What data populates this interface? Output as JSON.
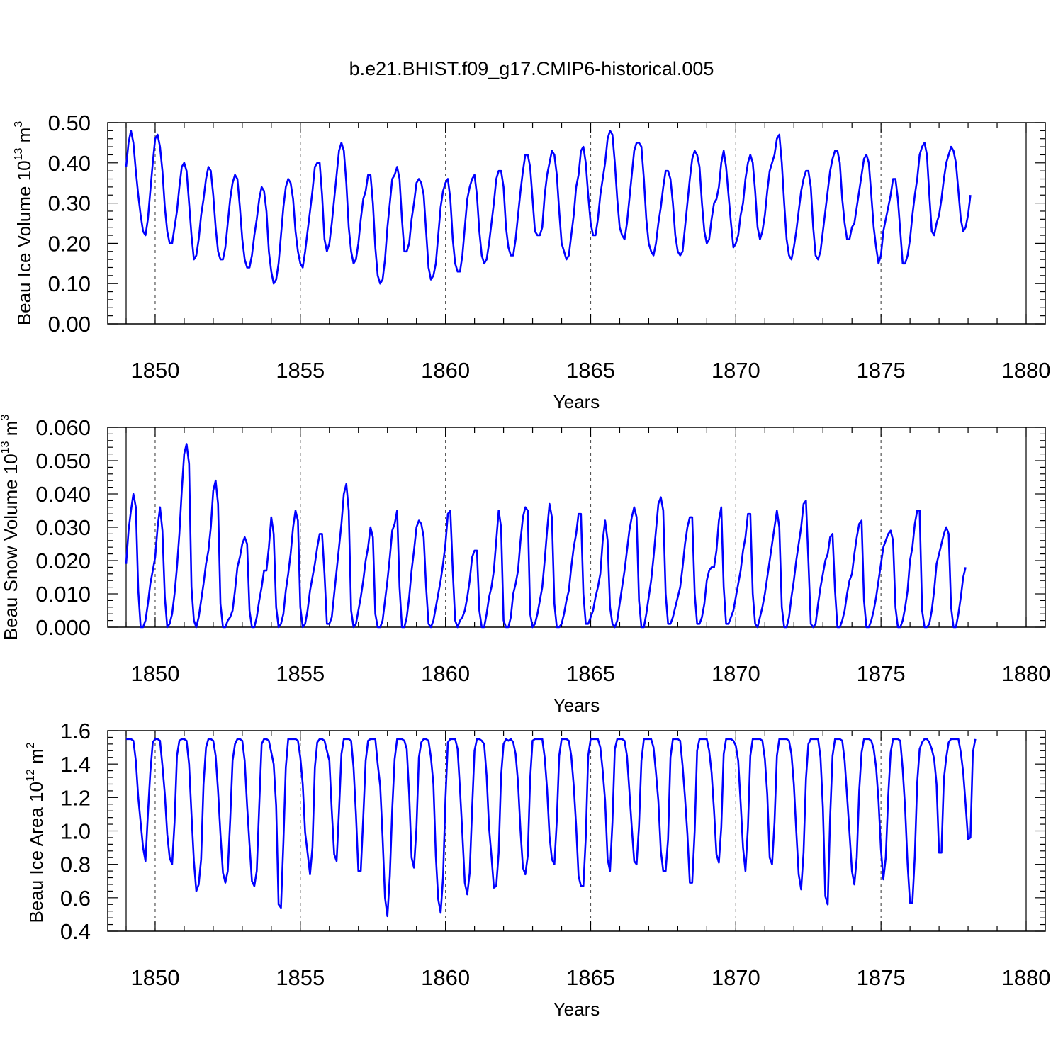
{
  "title": "b.e21.BHIST.f09_g17.CMIP6-historical.005",
  "chart_data": [
    {
      "type": "line",
      "ylabel": "Beau Ice Volume 10",
      "ylabel_exp": "13",
      "ylabel_unit": " m",
      "ylabel_unit_exp": "3",
      "xlabel": "Years",
      "xlim": [
        1849,
        1880
      ],
      "ylim": [
        0.0,
        0.5
      ],
      "x_ticks": [
        1850,
        1855,
        1860,
        1865,
        1870,
        1875,
        1880
      ],
      "y_ticks": [
        "0.00",
        "0.10",
        "0.20",
        "0.30",
        "0.40",
        "0.50"
      ],
      "grid": "dashed vertical at major x ticks",
      "color": "#0000ff",
      "x_start": 1849.0,
      "x_step": 0.08333,
      "values": [
        0.39,
        0.45,
        0.48,
        0.45,
        0.38,
        0.32,
        0.27,
        0.23,
        0.22,
        0.26,
        0.33,
        0.4,
        0.46,
        0.47,
        0.44,
        0.38,
        0.29,
        0.23,
        0.2,
        0.2,
        0.24,
        0.28,
        0.34,
        0.39,
        0.4,
        0.38,
        0.3,
        0.22,
        0.16,
        0.17,
        0.21,
        0.27,
        0.31,
        0.36,
        0.39,
        0.38,
        0.32,
        0.24,
        0.18,
        0.16,
        0.16,
        0.19,
        0.25,
        0.31,
        0.35,
        0.37,
        0.36,
        0.29,
        0.21,
        0.16,
        0.14,
        0.14,
        0.17,
        0.22,
        0.26,
        0.31,
        0.34,
        0.33,
        0.28,
        0.18,
        0.13,
        0.1,
        0.11,
        0.15,
        0.22,
        0.29,
        0.34,
        0.36,
        0.35,
        0.31,
        0.23,
        0.18,
        0.15,
        0.14,
        0.18,
        0.23,
        0.28,
        0.33,
        0.39,
        0.4,
        0.4,
        0.32,
        0.21,
        0.18,
        0.2,
        0.25,
        0.31,
        0.37,
        0.43,
        0.45,
        0.43,
        0.35,
        0.24,
        0.18,
        0.15,
        0.16,
        0.2,
        0.26,
        0.31,
        0.33,
        0.37,
        0.37,
        0.3,
        0.19,
        0.12,
        0.1,
        0.11,
        0.16,
        0.24,
        0.3,
        0.36,
        0.37,
        0.39,
        0.36,
        0.26,
        0.18,
        0.18,
        0.2,
        0.26,
        0.3,
        0.35,
        0.36,
        0.35,
        0.32,
        0.23,
        0.14,
        0.11,
        0.12,
        0.15,
        0.22,
        0.29,
        0.33,
        0.35,
        0.36,
        0.31,
        0.21,
        0.15,
        0.13,
        0.13,
        0.17,
        0.24,
        0.31,
        0.34,
        0.36,
        0.37,
        0.32,
        0.23,
        0.17,
        0.15,
        0.16,
        0.2,
        0.25,
        0.3,
        0.36,
        0.38,
        0.38,
        0.34,
        0.24,
        0.19,
        0.17,
        0.17,
        0.21,
        0.27,
        0.33,
        0.38,
        0.42,
        0.42,
        0.39,
        0.31,
        0.23,
        0.22,
        0.22,
        0.24,
        0.32,
        0.37,
        0.4,
        0.43,
        0.42,
        0.37,
        0.28,
        0.2,
        0.18,
        0.16,
        0.17,
        0.22,
        0.27,
        0.34,
        0.37,
        0.43,
        0.44,
        0.4,
        0.32,
        0.25,
        0.22,
        0.22,
        0.26,
        0.32,
        0.36,
        0.4,
        0.46,
        0.48,
        0.47,
        0.4,
        0.31,
        0.24,
        0.22,
        0.21,
        0.25,
        0.31,
        0.37,
        0.43,
        0.45,
        0.45,
        0.44,
        0.36,
        0.26,
        0.2,
        0.18,
        0.17,
        0.2,
        0.25,
        0.29,
        0.34,
        0.38,
        0.38,
        0.36,
        0.3,
        0.22,
        0.18,
        0.17,
        0.18,
        0.24,
        0.3,
        0.36,
        0.41,
        0.43,
        0.42,
        0.39,
        0.3,
        0.23,
        0.2,
        0.21,
        0.26,
        0.3,
        0.31,
        0.34,
        0.4,
        0.43,
        0.39,
        0.32,
        0.25,
        0.19,
        0.2,
        0.22,
        0.27,
        0.3,
        0.36,
        0.4,
        0.42,
        0.4,
        0.33,
        0.24,
        0.21,
        0.23,
        0.27,
        0.33,
        0.38,
        0.4,
        0.42,
        0.46,
        0.47,
        0.4,
        0.3,
        0.21,
        0.17,
        0.16,
        0.19,
        0.23,
        0.28,
        0.33,
        0.36,
        0.38,
        0.38,
        0.34,
        0.24,
        0.17,
        0.16,
        0.18,
        0.23,
        0.28,
        0.33,
        0.38,
        0.41,
        0.43,
        0.43,
        0.4,
        0.31,
        0.25,
        0.21,
        0.21,
        0.24,
        0.25,
        0.29,
        0.33,
        0.37,
        0.41,
        0.42,
        0.4,
        0.32,
        0.24,
        0.19,
        0.15,
        0.17,
        0.23,
        0.26,
        0.29,
        0.32,
        0.36,
        0.36,
        0.31,
        0.23,
        0.15,
        0.15,
        0.17,
        0.21,
        0.27,
        0.32,
        0.36,
        0.42,
        0.44,
        0.45,
        0.42,
        0.32,
        0.23,
        0.22,
        0.25,
        0.27,
        0.31,
        0.36,
        0.4,
        0.42,
        0.44,
        0.43,
        0.4,
        0.33,
        0.26,
        0.23,
        0.24,
        0.27,
        0.32
      ]
    },
    {
      "type": "line",
      "ylabel": "Beau Snow Volume 10",
      "ylabel_exp": "13",
      "ylabel_unit": " m",
      "ylabel_unit_exp": "3",
      "xlabel": "Years",
      "xlim": [
        1849,
        1880
      ],
      "ylim": [
        0.0,
        0.06
      ],
      "x_ticks": [
        1850,
        1855,
        1860,
        1865,
        1870,
        1875,
        1880
      ],
      "y_ticks": [
        "0.000",
        "0.010",
        "0.020",
        "0.030",
        "0.040",
        "0.050",
        "0.060"
      ],
      "grid": "dashed vertical at major x ticks",
      "color": "#0000ff",
      "x_start": 1849.0,
      "x_step": 0.08333,
      "values": [
        0.019,
        0.029,
        0.035,
        0.04,
        0.036,
        0.011,
        0.0,
        0.0,
        0.002,
        0.007,
        0.013,
        0.017,
        0.021,
        0.03,
        0.036,
        0.029,
        0.009,
        0.0,
        0.001,
        0.004,
        0.01,
        0.018,
        0.028,
        0.041,
        0.052,
        0.055,
        0.049,
        0.012,
        0.002,
        0.0,
        0.003,
        0.008,
        0.013,
        0.019,
        0.023,
        0.03,
        0.041,
        0.044,
        0.037,
        0.007,
        0.0,
        0.0,
        0.002,
        0.003,
        0.005,
        0.011,
        0.018,
        0.021,
        0.025,
        0.027,
        0.025,
        0.005,
        0.0,
        0.0,
        0.003,
        0.008,
        0.012,
        0.017,
        0.017,
        0.024,
        0.033,
        0.028,
        0.006,
        0.0,
        0.001,
        0.004,
        0.011,
        0.016,
        0.022,
        0.03,
        0.035,
        0.032,
        0.006,
        0.0,
        0.001,
        0.005,
        0.011,
        0.015,
        0.019,
        0.024,
        0.028,
        0.028,
        0.016,
        0.001,
        0.001,
        0.003,
        0.01,
        0.017,
        0.024,
        0.031,
        0.04,
        0.043,
        0.035,
        0.005,
        0.0,
        0.001,
        0.005,
        0.009,
        0.014,
        0.02,
        0.024,
        0.03,
        0.027,
        0.004,
        0.0,
        0.0,
        0.002,
        0.008,
        0.014,
        0.021,
        0.029,
        0.031,
        0.035,
        0.012,
        0.0,
        0.0,
        0.003,
        0.009,
        0.017,
        0.023,
        0.03,
        0.032,
        0.031,
        0.027,
        0.012,
        0.001,
        0.0,
        0.002,
        0.006,
        0.01,
        0.014,
        0.019,
        0.025,
        0.034,
        0.035,
        0.017,
        0.002,
        0.0,
        0.002,
        0.003,
        0.005,
        0.009,
        0.014,
        0.021,
        0.023,
        0.023,
        0.005,
        0.0,
        0.0,
        0.004,
        0.009,
        0.012,
        0.017,
        0.026,
        0.035,
        0.03,
        0.002,
        0.0,
        0.0,
        0.003,
        0.01,
        0.013,
        0.017,
        0.026,
        0.033,
        0.036,
        0.035,
        0.004,
        0.0,
        0.001,
        0.004,
        0.008,
        0.012,
        0.02,
        0.029,
        0.037,
        0.033,
        0.007,
        0.0,
        0.0,
        0.001,
        0.004,
        0.008,
        0.011,
        0.018,
        0.024,
        0.028,
        0.034,
        0.034,
        0.01,
        0.001,
        0.001,
        0.003,
        0.005,
        0.009,
        0.012,
        0.016,
        0.026,
        0.032,
        0.026,
        0.006,
        0.001,
        0.0,
        0.002,
        0.007,
        0.012,
        0.017,
        0.023,
        0.029,
        0.033,
        0.036,
        0.033,
        0.008,
        0.0,
        0.0,
        0.004,
        0.009,
        0.014,
        0.021,
        0.029,
        0.037,
        0.039,
        0.035,
        0.01,
        0.001,
        0.001,
        0.003,
        0.006,
        0.009,
        0.012,
        0.018,
        0.025,
        0.03,
        0.033,
        0.033,
        0.01,
        0.001,
        0.001,
        0.003,
        0.007,
        0.014,
        0.017,
        0.018,
        0.018,
        0.023,
        0.032,
        0.036,
        0.012,
        0.001,
        0.001,
        0.003,
        0.005,
        0.009,
        0.013,
        0.017,
        0.023,
        0.027,
        0.034,
        0.034,
        0.01,
        0.001,
        0.0,
        0.003,
        0.006,
        0.01,
        0.015,
        0.02,
        0.025,
        0.03,
        0.035,
        0.03,
        0.006,
        0.0,
        0.0,
        0.003,
        0.009,
        0.014,
        0.02,
        0.025,
        0.03,
        0.037,
        0.038,
        0.02,
        0.001,
        0.0,
        0.001,
        0.007,
        0.012,
        0.016,
        0.02,
        0.022,
        0.027,
        0.028,
        0.011,
        0.0,
        0.0,
        0.002,
        0.005,
        0.01,
        0.014,
        0.016,
        0.022,
        0.027,
        0.031,
        0.032,
        0.008,
        0.0,
        0.0,
        0.002,
        0.005,
        0.009,
        0.014,
        0.019,
        0.024,
        0.026,
        0.028,
        0.029,
        0.026,
        0.006,
        0.0,
        0.0,
        0.002,
        0.006,
        0.011,
        0.02,
        0.024,
        0.031,
        0.035,
        0.035,
        0.005,
        0.0,
        0.0,
        0.001,
        0.005,
        0.011,
        0.019,
        0.022,
        0.025,
        0.028,
        0.03,
        0.028,
        0.006,
        0.0,
        0.0,
        0.004,
        0.009,
        0.015,
        0.018
      ]
    },
    {
      "type": "line",
      "ylabel": "Beau Ice Area 10",
      "ylabel_exp": "12",
      "ylabel_unit": " m",
      "ylabel_unit_exp": "2",
      "xlabel": "Years",
      "xlim": [
        1849,
        1880
      ],
      "ylim": [
        0.4,
        1.6
      ],
      "x_ticks": [
        1850,
        1855,
        1860,
        1865,
        1870,
        1875,
        1880
      ],
      "y_ticks": [
        "0.4",
        "0.6",
        "0.8",
        "1.0",
        "1.2",
        "1.4",
        "1.6"
      ],
      "grid": "dashed vertical at major x ticks",
      "color": "#0000ff",
      "x_start": 1849.0,
      "x_step": 0.08333,
      "values": [
        1.55,
        1.55,
        1.55,
        1.54,
        1.42,
        1.2,
        1.05,
        0.9,
        0.82,
        1.1,
        1.35,
        1.53,
        1.55,
        1.55,
        1.54,
        1.39,
        1.22,
        0.98,
        0.84,
        0.8,
        1.05,
        1.45,
        1.54,
        1.55,
        1.55,
        1.54,
        1.4,
        1.1,
        0.82,
        0.64,
        0.68,
        0.83,
        1.28,
        1.5,
        1.55,
        1.55,
        1.54,
        1.45,
        1.24,
        0.98,
        0.75,
        0.69,
        0.76,
        1.06,
        1.42,
        1.52,
        1.55,
        1.55,
        1.54,
        1.42,
        1.15,
        0.92,
        0.7,
        0.67,
        0.76,
        1.15,
        1.52,
        1.55,
        1.55,
        1.54,
        1.47,
        1.4,
        1.15,
        0.56,
        0.54,
        0.93,
        1.38,
        1.55,
        1.55,
        1.55,
        1.55,
        1.54,
        1.44,
        1.28,
        0.99,
        0.87,
        0.74,
        0.9,
        1.38,
        1.53,
        1.55,
        1.55,
        1.54,
        1.48,
        1.42,
        1.12,
        0.86,
        0.82,
        1.12,
        1.46,
        1.55,
        1.55,
        1.55,
        1.54,
        1.38,
        1.1,
        0.76,
        0.76,
        1.08,
        1.42,
        1.54,
        1.55,
        1.55,
        1.55,
        1.4,
        1.27,
        0.96,
        0.6,
        0.49,
        0.73,
        1.13,
        1.43,
        1.55,
        1.55,
        1.55,
        1.54,
        1.49,
        1.22,
        0.84,
        0.78,
        1.02,
        1.44,
        1.53,
        1.55,
        1.55,
        1.54,
        1.44,
        1.28,
        0.85,
        0.59,
        0.51,
        0.72,
        1.19,
        1.53,
        1.55,
        1.55,
        1.55,
        1.49,
        1.25,
        0.98,
        0.69,
        0.62,
        0.75,
        1.13,
        1.48,
        1.55,
        1.55,
        1.54,
        1.52,
        1.33,
        1.02,
        0.85,
        0.66,
        0.67,
        0.87,
        1.33,
        1.52,
        1.55,
        1.54,
        1.55,
        1.53,
        1.46,
        1.29,
        1.0,
        0.78,
        0.74,
        0.85,
        1.31,
        1.54,
        1.55,
        1.55,
        1.55,
        1.55,
        1.44,
        1.25,
        0.97,
        0.83,
        0.8,
        1.06,
        1.45,
        1.55,
        1.55,
        1.55,
        1.54,
        1.45,
        1.27,
        1.03,
        0.73,
        0.67,
        0.67,
        0.96,
        1.45,
        1.55,
        1.55,
        1.55,
        1.55,
        1.5,
        1.36,
        1.18,
        0.83,
        0.76,
        1.05,
        1.49,
        1.55,
        1.55,
        1.55,
        1.54,
        1.45,
        1.24,
        1.02,
        0.82,
        0.8,
        1.03,
        1.42,
        1.55,
        1.55,
        1.55,
        1.55,
        1.5,
        1.35,
        1.18,
        0.88,
        0.76,
        0.76,
        0.95,
        1.44,
        1.55,
        1.55,
        1.55,
        1.54,
        1.39,
        1.2,
        0.98,
        0.69,
        0.69,
        1.0,
        1.48,
        1.55,
        1.55,
        1.55,
        1.55,
        1.48,
        1.35,
        1.12,
        0.86,
        0.81,
        1.02,
        1.46,
        1.55,
        1.55,
        1.55,
        1.54,
        1.51,
        1.42,
        1.17,
        0.9,
        0.76,
        1.02,
        1.45,
        1.55,
        1.55,
        1.55,
        1.55,
        1.54,
        1.43,
        1.22,
        0.84,
        0.8,
        1.05,
        1.45,
        1.55,
        1.55,
        1.55,
        1.55,
        1.54,
        1.46,
        1.28,
        1.0,
        0.74,
        0.65,
        0.87,
        1.31,
        1.52,
        1.55,
        1.55,
        1.55,
        1.55,
        1.44,
        1.14,
        0.61,
        0.56,
        1.08,
        1.45,
        1.55,
        1.55,
        1.55,
        1.54,
        1.42,
        1.21,
        0.99,
        0.76,
        0.68,
        0.84,
        1.24,
        1.47,
        1.55,
        1.55,
        1.55,
        1.54,
        1.49,
        1.38,
        1.18,
        0.89,
        0.71,
        0.84,
        1.21,
        1.47,
        1.55,
        1.55,
        1.55,
        1.54,
        1.37,
        1.13,
        0.8,
        0.57,
        0.57,
        0.85,
        1.29,
        1.49,
        1.53,
        1.55,
        1.55,
        1.53,
        1.49,
        1.43,
        1.28,
        0.87,
        0.87,
        1.31,
        1.44,
        1.53,
        1.55,
        1.55,
        1.55,
        1.55,
        1.47,
        1.35,
        1.16,
        0.95,
        0.96,
        1.47,
        1.55
      ]
    }
  ]
}
